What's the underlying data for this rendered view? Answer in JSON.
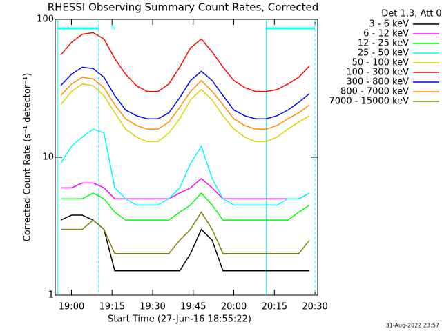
{
  "chart_data": {
    "type": "line",
    "title": "RHESSI Observing Summary Count Rates, Corrected",
    "y_label": "Corrected Count Rate (s⁻¹ detector⁻¹)",
    "x_label": "Start Time (27-Jun-16 18:55:22)",
    "legend_title": "Det 1,3, Att 0",
    "footer": "31-Aug-2022 23:57",
    "night_label": "N",
    "night_intervals": [
      [
        "18:55",
        "19:10"
      ],
      [
        "20:12",
        "20:30"
      ]
    ],
    "night_color": "#00ffff",
    "log_y": true,
    "xlim": [
      "18:54",
      "20:31"
    ],
    "xticks": [
      "19:00",
      "19:15",
      "19:30",
      "19:45",
      "20:00",
      "20:15",
      "20:30"
    ],
    "ylim": [
      1,
      100
    ],
    "yticks": [
      1,
      10,
      100
    ],
    "x": [
      "18:56",
      "19:00",
      "19:04",
      "19:08",
      "19:12",
      "19:16",
      "19:20",
      "19:24",
      "19:28",
      "19:32",
      "19:36",
      "19:40",
      "19:44",
      "19:48",
      "19:52",
      "19:56",
      "20:00",
      "20:04",
      "20:08",
      "20:12",
      "20:16",
      "20:20",
      "20:24",
      "20:28"
    ],
    "series": [
      {
        "name": "3 - 6 keV",
        "color": "#000000",
        "values": [
          3.5,
          3.8,
          3.8,
          3.5,
          3,
          1.5,
          1.5,
          1.5,
          1.5,
          1.5,
          1.5,
          1.5,
          2,
          3,
          2.5,
          1.5,
          1.5,
          1.5,
          1.5,
          1.5,
          1.5,
          1.5,
          1.5,
          1.5
        ]
      },
      {
        "name": "6 - 12 keV",
        "color": "#ff00ff",
        "values": [
          6,
          6,
          6.5,
          6.5,
          6,
          5,
          5,
          5,
          5,
          5,
          5,
          5.5,
          6,
          7,
          6,
          5,
          5,
          5,
          5,
          5,
          5,
          5,
          5,
          5.5
        ]
      },
      {
        "name": "12 - 25 keV",
        "color": "#00ff00",
        "values": [
          5,
          5,
          5,
          5.5,
          5,
          4,
          3.5,
          3.5,
          3.5,
          3.5,
          3.5,
          4,
          4.5,
          5.5,
          4.5,
          3.5,
          3.5,
          3.5,
          3.5,
          3.5,
          3.5,
          3.5,
          4,
          4.5
        ]
      },
      {
        "name": "25 - 50 keV",
        "color": "#00ffff",
        "values": [
          9,
          12,
          14,
          16,
          15,
          6,
          5,
          4.5,
          4.5,
          4.5,
          5,
          6,
          9,
          12,
          7,
          5,
          4.5,
          4.5,
          4.5,
          4.5,
          4.5,
          5,
          5,
          5.5
        ]
      },
      {
        "name": "50 - 100 keV",
        "color": "#e0d000",
        "values": [
          24,
          30,
          34,
          33,
          28,
          21,
          16,
          14,
          13,
          13,
          15,
          19,
          26,
          31,
          26,
          20,
          16,
          14,
          13,
          13,
          14,
          16,
          18,
          20
        ]
      },
      {
        "name": "100 - 300 keV",
        "color": "#ff0000",
        "values": [
          55,
          68,
          78,
          80,
          72,
          52,
          40,
          33,
          30,
          30,
          34,
          45,
          62,
          72,
          58,
          45,
          36,
          32,
          30,
          30,
          31,
          34,
          38,
          46
        ]
      },
      {
        "name": "300 - 800 keV",
        "color": "#0000ff",
        "values": [
          33,
          40,
          45,
          44,
          38,
          28,
          22,
          20,
          19,
          19,
          21,
          27,
          36,
          42,
          36,
          28,
          22,
          20,
          19,
          19,
          20,
          22,
          25,
          29
        ]
      },
      {
        "name": "800 - 7000 keV",
        "color": "#ff8c00",
        "values": [
          28,
          34,
          38,
          37,
          32,
          24,
          19,
          17,
          16,
          16,
          18,
          23,
          30,
          36,
          30,
          24,
          19,
          17,
          16,
          16,
          17,
          19,
          21,
          24
        ]
      },
      {
        "name": "7000 - 15000 keV",
        "color": "#808000",
        "values": [
          3,
          3,
          3,
          3.5,
          3,
          2,
          2,
          2,
          2,
          2,
          2,
          2.5,
          3,
          4,
          3,
          2,
          2,
          2,
          2,
          2,
          2,
          2,
          2,
          2.5
        ]
      }
    ]
  }
}
